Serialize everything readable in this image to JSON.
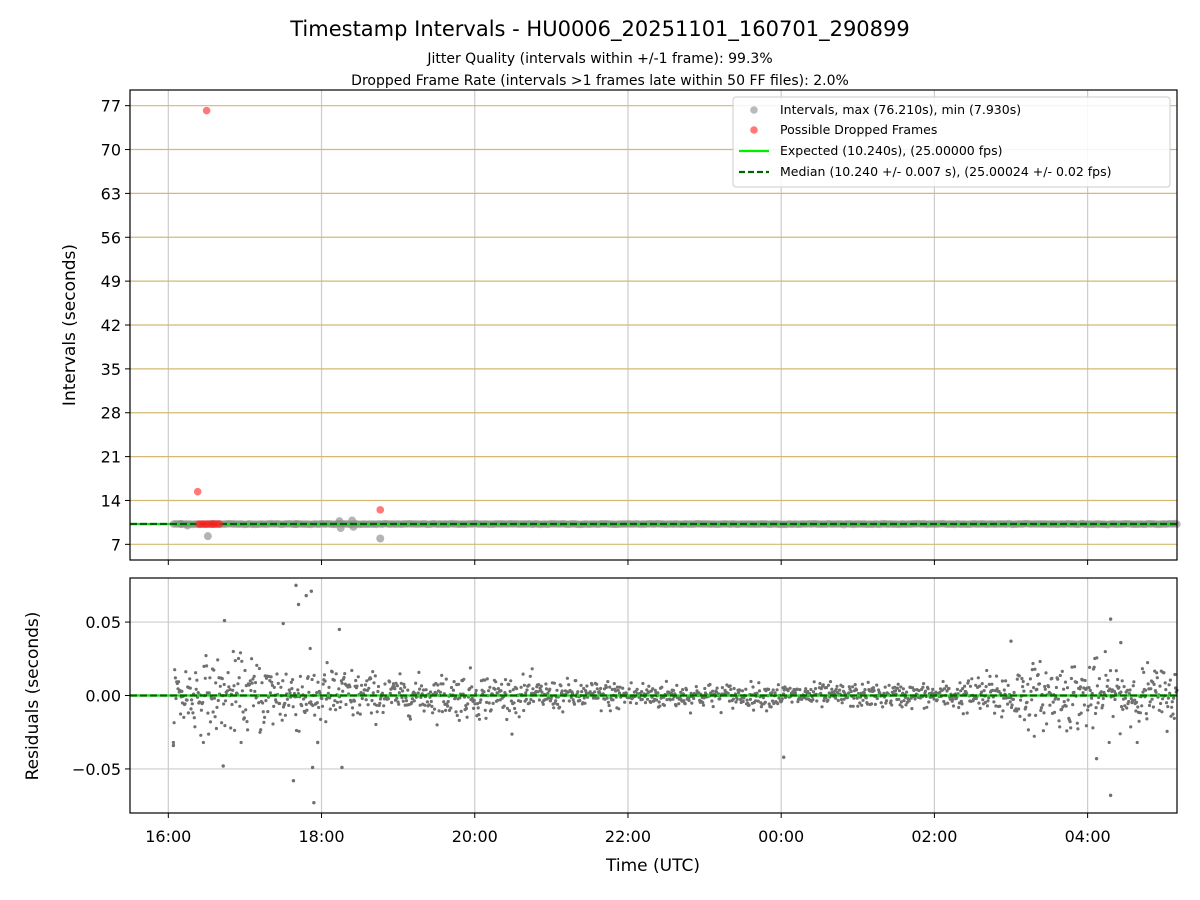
{
  "chart_data": [
    {
      "type": "scatter",
      "title": "Timestamp Intervals - HU0006_20251101_160701_290899",
      "subtitle_lines": [
        "Jitter Quality (intervals within +/-1 frame): 99.3%",
        "Dropped Frame Rate (intervals >1 frames late within 50 FF files): 2.0%"
      ],
      "ylabel": "Intervals (seconds)",
      "ylim": [
        4.5,
        79.5
      ],
      "yticks": [
        7,
        14,
        21,
        28,
        35,
        42,
        49,
        56,
        63,
        70,
        77
      ],
      "xlim": [
        "15:30",
        "05:10"
      ],
      "grid": true,
      "legend_position": "top-right",
      "legend": [
        "Intervals, max (76.210s), min (7.930s)",
        "Possible Dropped Frames",
        "Expected (10.240s), (25.00000 fps)",
        "Median (10.240 +/- 0.007 s), (25.00024 +/- 0.02 fps)"
      ],
      "series": [
        {
          "name": "Intervals, max (76.210s), min (7.930s)",
          "color": "#8c8c8c",
          "value_typical": 10.24,
          "time_range": [
            "16:04",
            "05:10"
          ],
          "notable_points": [
            {
              "x": "16:10",
              "y": 10.24
            },
            {
              "x": "16:15",
              "y": 10.0
            },
            {
              "x": "16:31",
              "y": 8.3
            },
            {
              "x": "16:35",
              "y": 10.24
            },
            {
              "x": "17:40",
              "y": 10.24
            },
            {
              "x": "18:14",
              "y": 10.7
            },
            {
              "x": "18:15",
              "y": 9.6
            },
            {
              "x": "18:24",
              "y": 10.8
            },
            {
              "x": "18:25",
              "y": 9.8
            },
            {
              "x": "18:46",
              "y": 7.93
            }
          ]
        },
        {
          "name": "Possible Dropped Frames",
          "color": "#ff4040",
          "points": [
            {
              "x": "16:30",
              "y": 76.21
            },
            {
              "x": "16:23",
              "y": 15.4
            },
            {
              "x": "18:46",
              "y": 12.5
            },
            {
              "x": "16:24",
              "y": 10.24
            },
            {
              "x": "16:26",
              "y": 10.24
            },
            {
              "x": "16:28",
              "y": 10.24
            },
            {
              "x": "16:30",
              "y": 10.24
            },
            {
              "x": "16:32",
              "y": 10.24
            },
            {
              "x": "16:34",
              "y": 10.24
            },
            {
              "x": "16:36",
              "y": 10.24
            },
            {
              "x": "16:38",
              "y": 10.24
            },
            {
              "x": "16:40",
              "y": 10.24
            }
          ]
        },
        {
          "name": "Expected (10.240s), (25.00000 fps)",
          "type": "hline",
          "y": 10.24,
          "color": "#00ee00"
        },
        {
          "name": "Median (10.240 +/- 0.007 s), (25.00024 +/- 0.02 fps)",
          "type": "hline",
          "y": 10.24,
          "color": "#006400",
          "dashed": true
        }
      ]
    },
    {
      "type": "scatter",
      "ylabel": "Residuals (seconds)",
      "xlabel": "Time (UTC)",
      "ylim": [
        -0.08,
        0.08
      ],
      "yticks": [
        -0.05,
        0.0,
        0.05
      ],
      "ytick_labels": [
        "−0.05",
        "0.00",
        "0.05"
      ],
      "xlim": [
        "15:30",
        "05:10"
      ],
      "xticks": [
        "16:00",
        "18:00",
        "20:00",
        "22:00",
        "00:00",
        "02:00",
        "04:00"
      ],
      "grid": true,
      "series": [
        {
          "name": "",
          "color": "#707070",
          "time_range": [
            "16:04",
            "05:10"
          ],
          "spread_profile": [
            {
              "x": "16:10",
              "sd": 0.012
            },
            {
              "x": "17:00",
              "sd": 0.013
            },
            {
              "x": "18:00",
              "sd": 0.011
            },
            {
              "x": "19:00",
              "sd": 0.006
            },
            {
              "x": "20:00",
              "sd": 0.008
            },
            {
              "x": "21:00",
              "sd": 0.005
            },
            {
              "x": "22:00",
              "sd": 0.005
            },
            {
              "x": "23:00",
              "sd": 0.004
            },
            {
              "x": "00:00",
              "sd": 0.004
            },
            {
              "x": "01:00",
              "sd": 0.004
            },
            {
              "x": "02:00",
              "sd": 0.004
            },
            {
              "x": "02:30",
              "sd": 0.006
            },
            {
              "x": "03:00",
              "sd": 0.01
            },
            {
              "x": "04:00",
              "sd": 0.012
            },
            {
              "x": "05:10",
              "sd": 0.009
            }
          ],
          "outliers": [
            {
              "x": "16:04",
              "y": -0.034
            },
            {
              "x": "16:43",
              "y": -0.048
            },
            {
              "x": "16:44",
              "y": 0.051
            },
            {
              "x": "17:30",
              "y": 0.049
            },
            {
              "x": "17:38",
              "y": -0.058
            },
            {
              "x": "17:40",
              "y": 0.075
            },
            {
              "x": "17:42",
              "y": 0.062
            },
            {
              "x": "17:48",
              "y": 0.068
            },
            {
              "x": "17:52",
              "y": 0.071
            },
            {
              "x": "17:54",
              "y": -0.073
            },
            {
              "x": "17:53",
              "y": -0.049
            },
            {
              "x": "17:57",
              "y": -0.032
            },
            {
              "x": "18:14",
              "y": 0.045
            },
            {
              "x": "18:16",
              "y": -0.049
            },
            {
              "x": "00:02",
              "y": -0.042
            },
            {
              "x": "03:00",
              "y": 0.037
            },
            {
              "x": "04:07",
              "y": -0.043
            },
            {
              "x": "04:18",
              "y": 0.052
            },
            {
              "x": "04:18",
              "y": -0.068
            },
            {
              "x": "04:26",
              "y": 0.036
            }
          ]
        },
        {
          "name": "Expected",
          "type": "hline",
          "y": 0.0,
          "color": "#00ee00"
        },
        {
          "name": "Median",
          "type": "hline",
          "y": 0.0,
          "color": "#006400",
          "dashed": true
        }
      ]
    }
  ]
}
